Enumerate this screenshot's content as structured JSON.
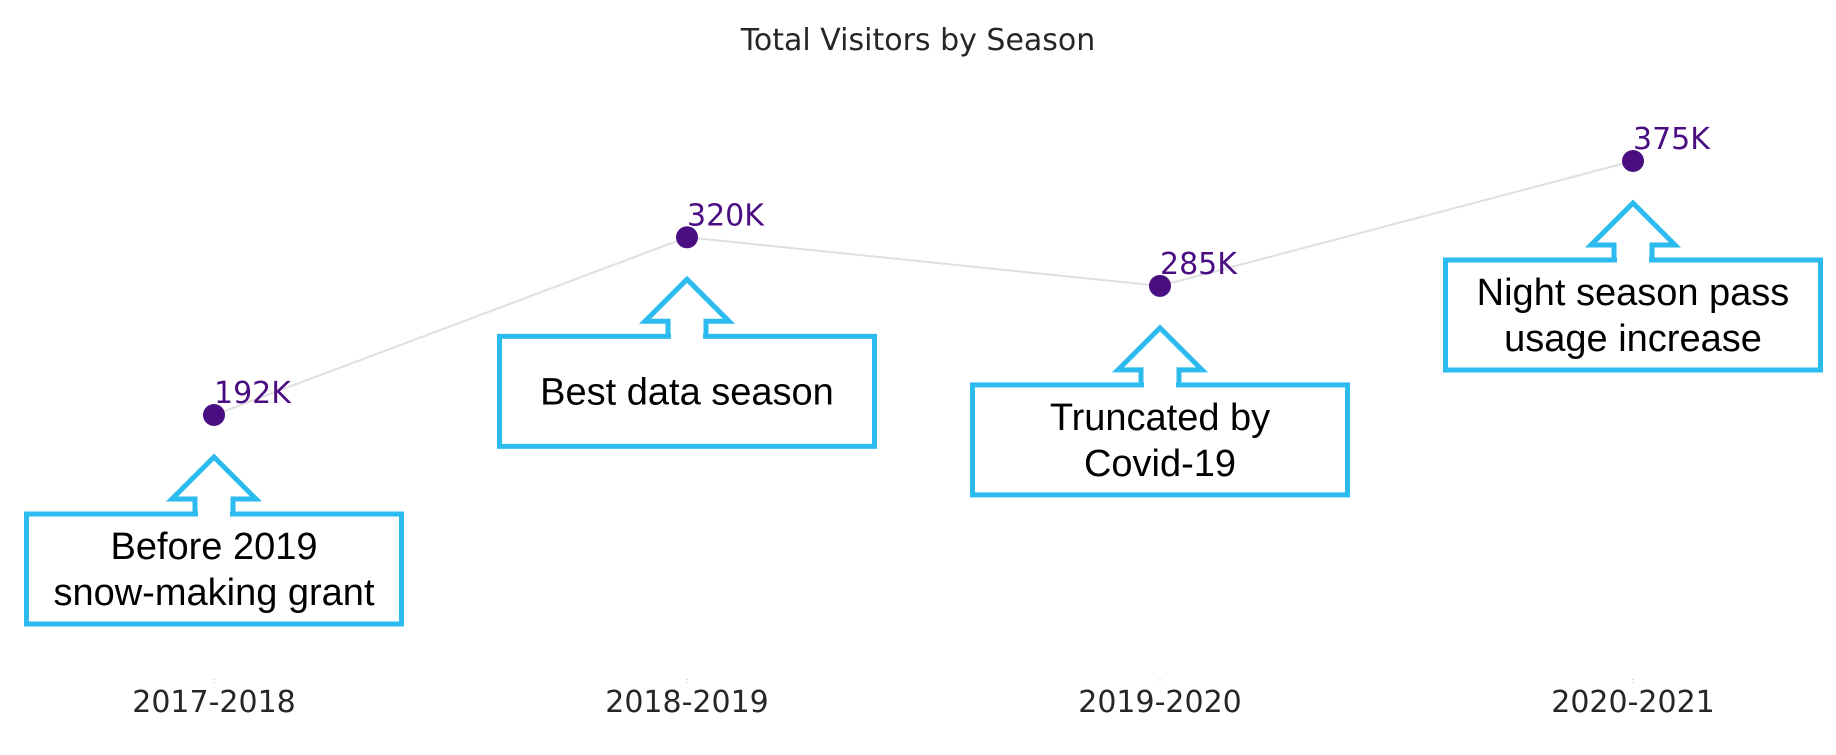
{
  "chart_data": {
    "type": "line",
    "title": "Total Visitors by Season",
    "categories": [
      "2017-2018",
      "2018-2019",
      "2019-2020",
      "2020-2021"
    ],
    "series": [
      {
        "values": [
          192,
          320,
          285,
          375
        ],
        "labels": [
          "192K",
          "320K",
          "285K",
          "375K"
        ]
      }
    ],
    "annotations": [
      {
        "category": "2017-2018",
        "lines": [
          "Before 2019",
          "snow-making grant"
        ],
        "position": "below"
      },
      {
        "category": "2018-2019",
        "lines": [
          "Best data season"
        ],
        "position": "below"
      },
      {
        "category": "2019-2020",
        "lines": [
          "Truncated by",
          "Covid-19"
        ],
        "position": "below"
      },
      {
        "category": "2020-2021",
        "lines": [
          "Night season pass",
          "usage increase"
        ],
        "position": "below"
      }
    ],
    "xlabel": "",
    "ylabel": "",
    "grid": false,
    "colors": {
      "marker": "#4b0e82",
      "label": "#4b0e82",
      "line": "#e0e0e0",
      "callout": "#2bbbef"
    }
  }
}
